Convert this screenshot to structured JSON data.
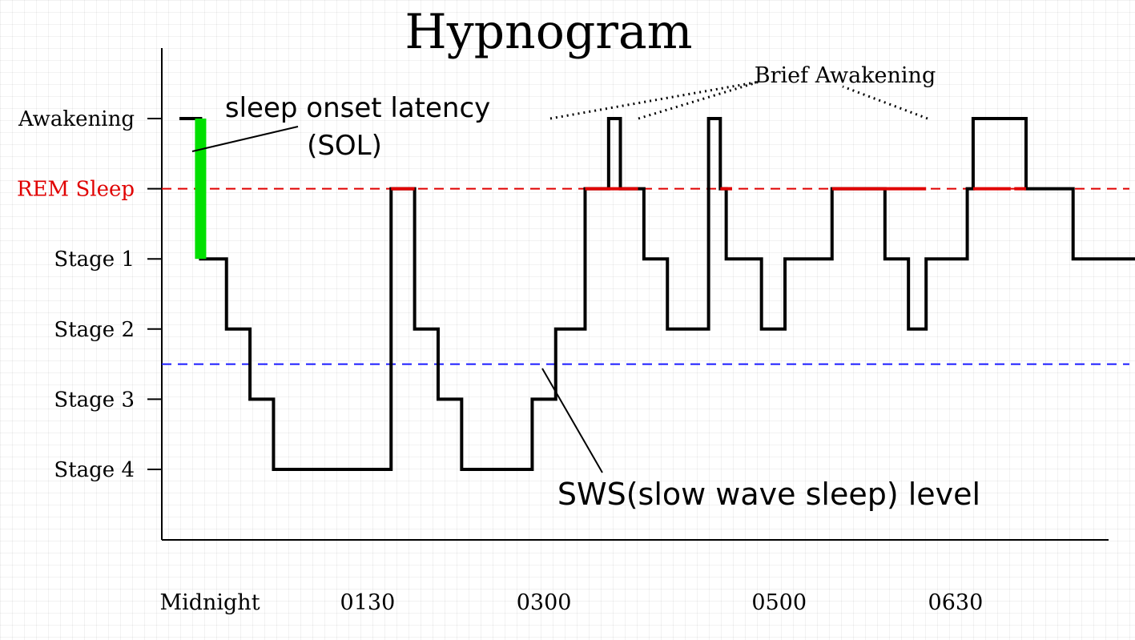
{
  "chart_data": {
    "type": "line",
    "title": "Hypnogram",
    "stage_labels": [
      "Awakening",
      "REM Sleep",
      "Stage 1",
      "Stage 2",
      "Stage 3",
      "Stage 4"
    ],
    "stage_levels": [
      5,
      4,
      3,
      2,
      1,
      0
    ],
    "x_tick_labels": [
      "Midnight",
      "0130",
      "0300",
      "0500",
      "0630"
    ],
    "x_tick_hours": [
      0,
      1.5,
      3,
      5,
      6.5
    ],
    "xlim_hours": [
      -0.25,
      7.5
    ],
    "ylim_levels": [
      -1,
      6
    ],
    "hypnogram": {
      "hours": [
        -0.1,
        0.08,
        0.3,
        0.5,
        0.7,
        1.7,
        1.9,
        2.1,
        2.3,
        2.9,
        3.1,
        3.35,
        3.55,
        3.65,
        3.85,
        4.05,
        4.4,
        4.5,
        4.55,
        4.85,
        5.05,
        5.45,
        5.9,
        6.1,
        6.25,
        6.6,
        6.65,
        7.1,
        7.5,
        8.3
      ],
      "levels": [
        5,
        3,
        2,
        1,
        0,
        4,
        2,
        1,
        0,
        1,
        2,
        4,
        5,
        4,
        3,
        2,
        5,
        4,
        3,
        2,
        3,
        4,
        3,
        2,
        3,
        4,
        5,
        4,
        3,
        5
      ]
    },
    "rem_segments": [
      [
        1.7,
        1.9
      ],
      [
        3.35,
        3.8
      ],
      [
        4.5,
        4.6
      ],
      [
        5.45,
        6.25
      ],
      [
        6.65,
        6.97
      ],
      [
        7.0,
        7.1
      ]
    ],
    "sol": {
      "label": "sleep onset latency\n(SOL)",
      "start_hour": 0.08,
      "from_level": 5,
      "to_level": 3
    },
    "sws_level_label": "SWS(slow wave sleep) level",
    "sws_threshold": 1.5,
    "rem_reference_level": 4,
    "brief_awakening_label": "Brief Awakening",
    "colors": {
      "hypnogram": "#000000",
      "rem": "#e00000",
      "sol_bar": "#00e000",
      "rem_label": "#e00000",
      "sws_line": "#1a1aff"
    }
  }
}
